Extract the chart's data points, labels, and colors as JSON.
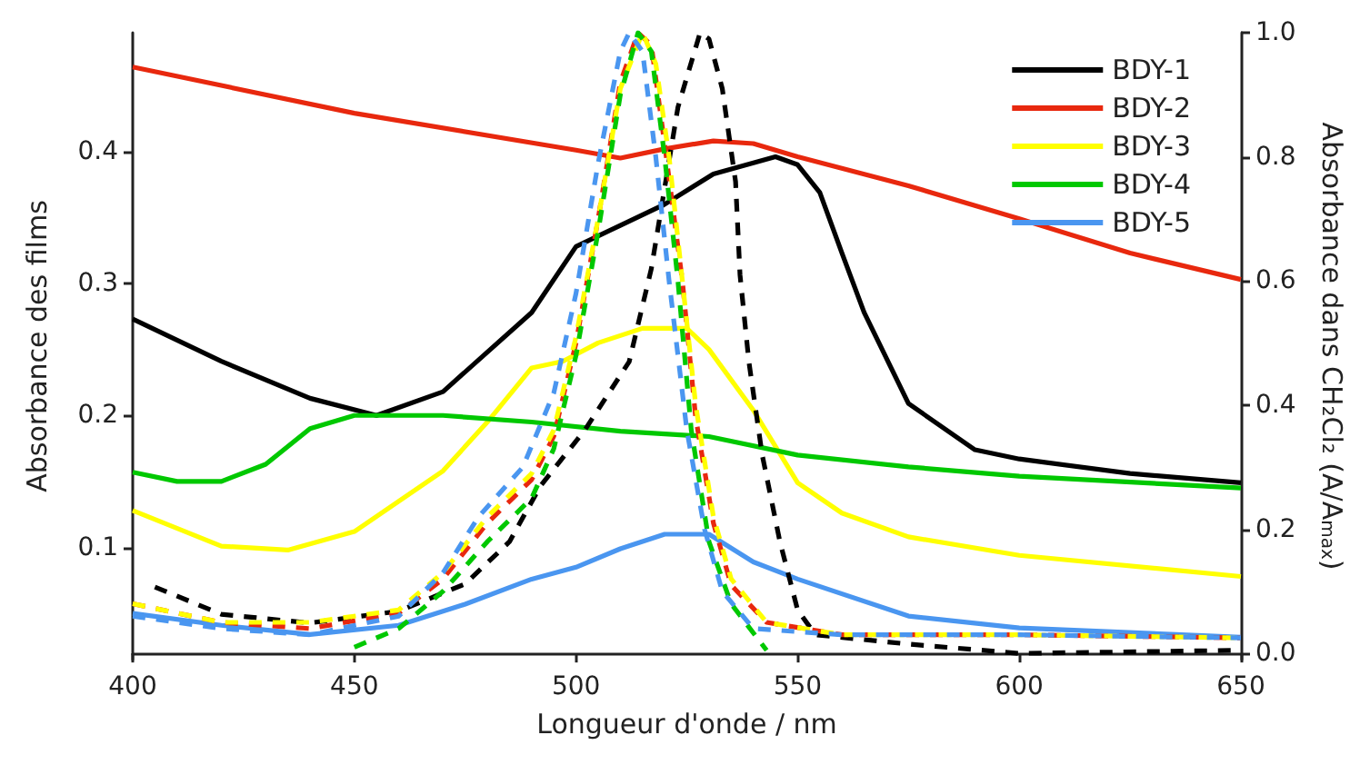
{
  "chart_data": {
    "type": "line",
    "xlabel": "Longueur d'onde / nm",
    "ylabel": "Absorbance des films",
    "y2label": "Absorbance dans CH₂Cl₂ (A/A$_{max}$)",
    "xlim": [
      400,
      650
    ],
    "xticks": [
      400,
      450,
      500,
      550,
      600,
      650
    ],
    "ylim": [
      0.015,
      0.49
    ],
    "yticks": [
      0.1,
      0.2,
      0.3,
      0.4
    ],
    "y2lim": [
      -0.01,
      1.0
    ],
    "y2ticks": [
      {
        "value": 0,
        "label": "0.0"
      },
      {
        "value": 0.2,
        "label": "0.2"
      },
      {
        "value": 0.4,
        "label": "0.4"
      },
      {
        "value": 0.6,
        "label": "0.6"
      },
      {
        "value": 0.8,
        "label": "0.8"
      },
      {
        "value": 1,
        "label": "1.0"
      }
    ],
    "legend": "top right",
    "marker": "none",
    "line_style": "solid",
    "series": [
      {
        "name": "BDY-1",
        "color": "#000000",
        "x": [
          400,
          420,
          440,
          455,
          470,
          490,
          500,
          510,
          520,
          531,
          545,
          550,
          555,
          560,
          565,
          575,
          590,
          600,
          625,
          650
        ],
        "values": [
          0.273,
          0.241,
          0.213,
          0.2,
          0.218,
          0.278,
          0.328,
          0.344,
          0.36,
          0.383,
          0.396,
          0.39,
          0.369,
          0.323,
          0.278,
          0.209,
          0.174,
          0.167,
          0.156,
          0.149
        ]
      },
      {
        "name": "BDY-2",
        "color": "#e8280e",
        "x": [
          400,
          450,
          500,
          510,
          520,
          531,
          540,
          550,
          575,
          600,
          625,
          650
        ],
        "values": [
          0.464,
          0.429,
          0.401,
          0.395,
          0.402,
          0.408,
          0.406,
          0.396,
          0.374,
          0.349,
          0.323,
          0.303
        ]
      },
      {
        "name": "BDY-3",
        "color": "#ffff00",
        "x": [
          400,
          420,
          435,
          450,
          470,
          480,
          490,
          497,
          505,
          515,
          525,
          530,
          540,
          550,
          560,
          575,
          600,
          650
        ],
        "values": [
          0.128,
          0.101,
          0.098,
          0.112,
          0.158,
          0.195,
          0.236,
          0.241,
          0.255,
          0.266,
          0.266,
          0.25,
          0.204,
          0.149,
          0.126,
          0.108,
          0.094,
          0.078
        ]
      },
      {
        "name": "BDY-4",
        "color": "#00c800",
        "x": [
          400,
          410,
          420,
          430,
          440,
          450,
          470,
          490,
          510,
          530,
          550,
          575,
          600,
          650
        ],
        "values": [
          0.157,
          0.15,
          0.15,
          0.163,
          0.19,
          0.2,
          0.2,
          0.195,
          0.188,
          0.184,
          0.17,
          0.161,
          0.154,
          0.145
        ]
      },
      {
        "name": "BDY-5",
        "color": "#4a96f0",
        "x": [
          400,
          420,
          440,
          460,
          475,
          490,
          500,
          510,
          520,
          530,
          540,
          550,
          575,
          600,
          650
        ],
        "values": [
          0.05,
          0.041,
          0.034,
          0.041,
          0.057,
          0.076,
          0.085,
          0.099,
          0.11,
          0.11,
          0.089,
          0.076,
          0.048,
          0.039,
          0.032
        ]
      },
      {
        "color": "#000000",
        "axis": "y2",
        "line_style": "dashed",
        "x": [
          405,
          420,
          440,
          460,
          475,
          485,
          492,
          502,
          512,
          517,
          523,
          528,
          530,
          533,
          536,
          537,
          539,
          542,
          546,
          550,
          554,
          575,
          600,
          650
        ],
        "values": [
          0.107,
          0.063,
          0.049,
          0.068,
          0.112,
          0.18,
          0.27,
          0.36,
          0.47,
          0.62,
          0.88,
          1.0,
          0.99,
          0.91,
          0.76,
          0.61,
          0.47,
          0.32,
          0.18,
          0.07,
          0.03,
          0.015,
          0.0,
          0.005
        ]
      },
      {
        "color": "#e8280e",
        "axis": "y2",
        "line_style": "dashed",
        "x": [
          400,
          420,
          440,
          460,
          470,
          480,
          490,
          495,
          500,
          505,
          510,
          514,
          517,
          520,
          524,
          527,
          531,
          535,
          543,
          560,
          600,
          650
        ],
        "values": [
          0.08,
          0.05,
          0.04,
          0.065,
          0.12,
          0.21,
          0.28,
          0.35,
          0.5,
          0.7,
          0.92,
          1.0,
          0.98,
          0.82,
          0.6,
          0.38,
          0.21,
          0.11,
          0.05,
          0.03,
          0.03,
          0.025
        ]
      },
      {
        "color": "#ffff00",
        "axis": "y2",
        "line_style": "dashed",
        "x": [
          400,
          420,
          440,
          460,
          470,
          480,
          490,
          495,
          500,
          505,
          510,
          515,
          518,
          521,
          524,
          527,
          531,
          535,
          543,
          560,
          600,
          650
        ],
        "values": [
          0.08,
          0.05,
          0.05,
          0.07,
          0.13,
          0.22,
          0.29,
          0.36,
          0.51,
          0.7,
          0.91,
          1.0,
          0.95,
          0.8,
          0.6,
          0.4,
          0.22,
          0.12,
          0.05,
          0.03,
          0.03,
          0.025
        ]
      },
      {
        "color": "#00c800",
        "axis": "y2",
        "line_style": "dashed",
        "x": [
          450,
          460,
          470,
          480,
          490,
          495,
          500,
          505,
          510,
          514,
          517,
          520,
          523,
          526,
          530,
          535,
          543
        ],
        "values": [
          0.01,
          0.04,
          0.1,
          0.18,
          0.25,
          0.33,
          0.48,
          0.68,
          0.9,
          1.0,
          0.97,
          0.8,
          0.6,
          0.36,
          0.18,
          0.08,
          0.005
        ]
      },
      {
        "color": "#4a96f0",
        "axis": "y2",
        "line_style": "dashed",
        "x": [
          400,
          420,
          440,
          460,
          470,
          478,
          488,
          495,
          500,
          505,
          510,
          512,
          515,
          518,
          521,
          525,
          529,
          533,
          540,
          560,
          600,
          650
        ],
        "values": [
          0.06,
          0.04,
          0.03,
          0.06,
          0.13,
          0.22,
          0.3,
          0.42,
          0.58,
          0.79,
          0.97,
          1.0,
          0.97,
          0.8,
          0.6,
          0.36,
          0.2,
          0.1,
          0.04,
          0.03,
          0.03,
          0.025
        ]
      }
    ]
  }
}
